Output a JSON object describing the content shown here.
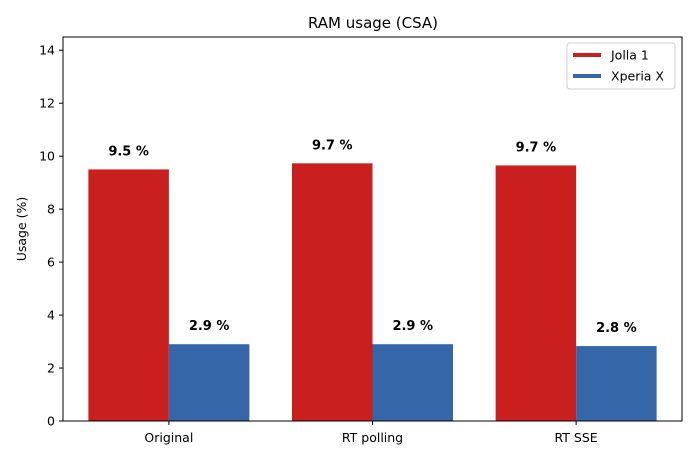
{
  "chart_data": {
    "type": "bar",
    "title": "RAM usage (CSA)",
    "xlabel": "",
    "ylabel": "Usage (%)",
    "ylim": [
      0,
      14.5
    ],
    "yticks": [
      0,
      2,
      4,
      6,
      8,
      10,
      12,
      14
    ],
    "categories": [
      "Original",
      "RT polling",
      "RT SSE"
    ],
    "series": [
      {
        "name": "Jolla 1",
        "color": "#c9201f",
        "values": [
          9.5,
          9.73,
          9.65
        ],
        "labels": [
          "9.5 %",
          "9.7 %",
          "9.7 %"
        ]
      },
      {
        "name": "Xperia X",
        "color": "#3566a8",
        "values": [
          2.9,
          2.9,
          2.83
        ],
        "labels": [
          "2.9 %",
          "2.9 %",
          "2.8 %"
        ]
      }
    ],
    "legend": "top-right",
    "grid": false
  }
}
